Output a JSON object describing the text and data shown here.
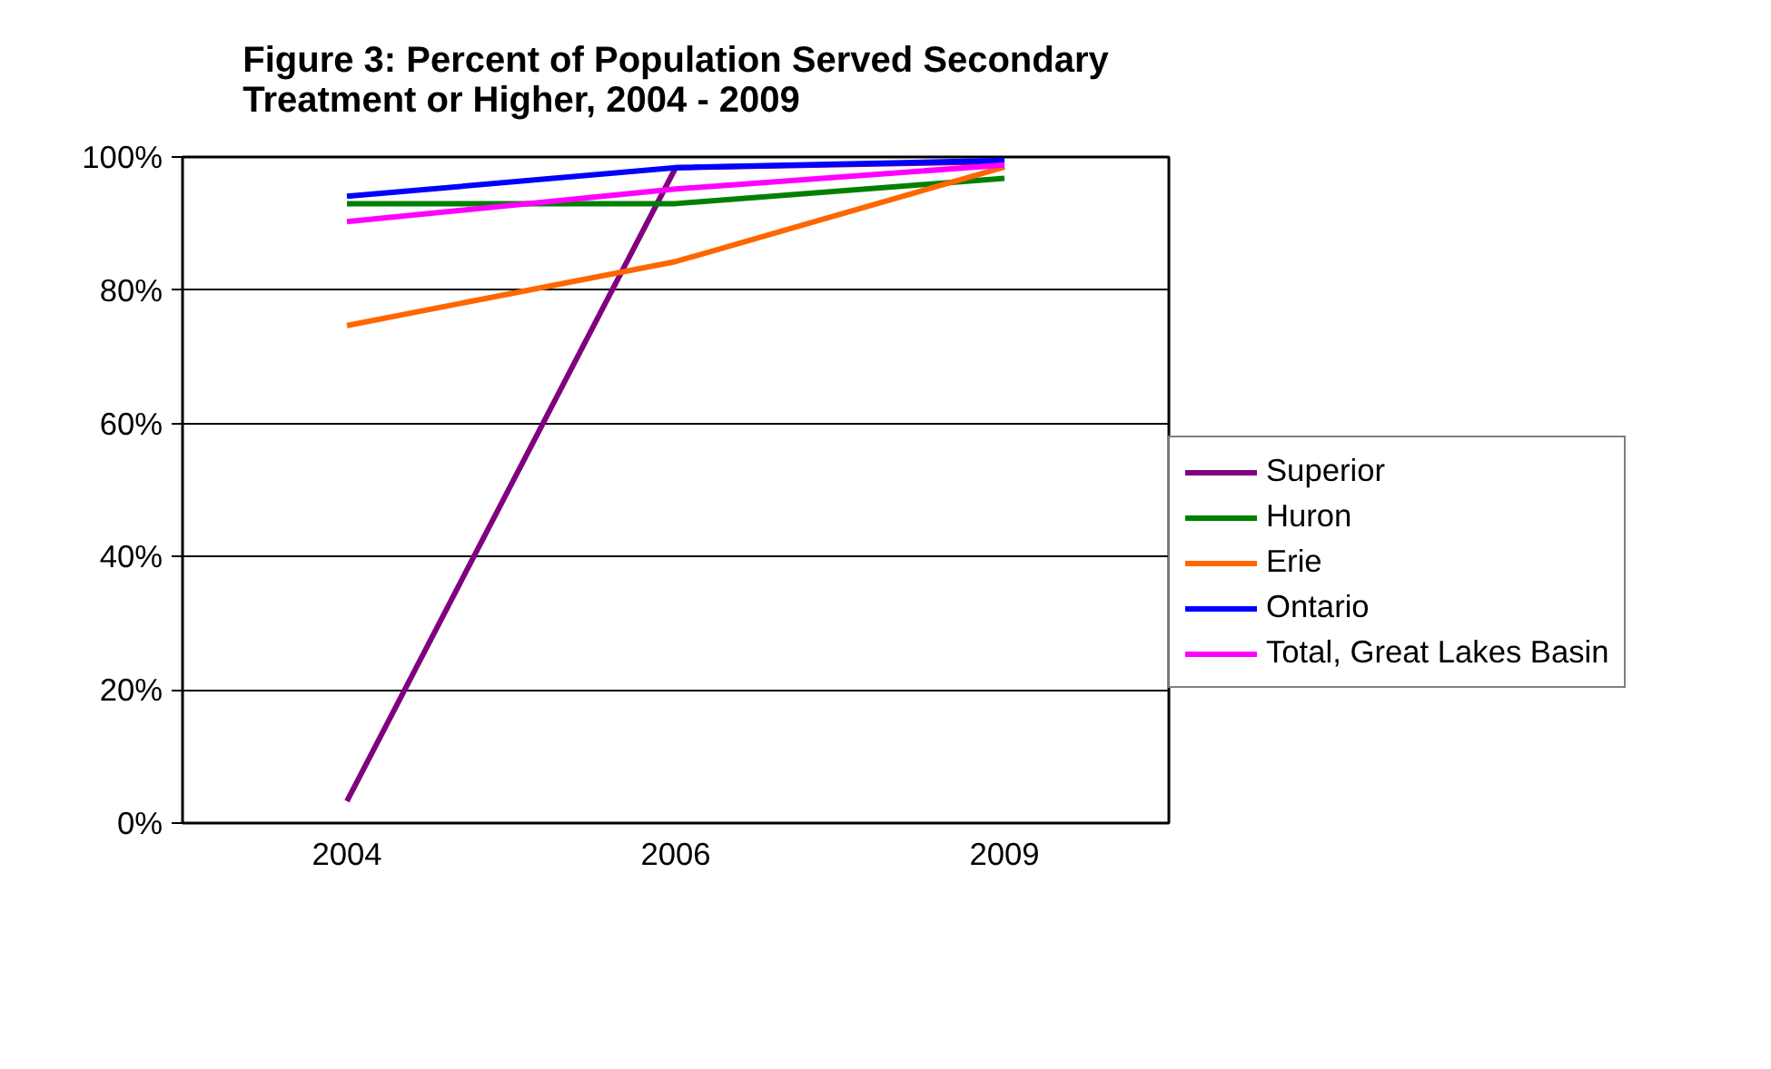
{
  "chart_data": {
    "type": "line",
    "title": "Figure 3: Percent of Population Served Secondary\nTreatment or Higher, 2004 - 2009",
    "categories": [
      "2004",
      "2006",
      "2009"
    ],
    "series": [
      {
        "name": "Superior",
        "color": "#800080",
        "values": [
          3.3,
          98.4,
          99.3
        ]
      },
      {
        "name": "Huron",
        "color": "#008000",
        "values": [
          93.0,
          93.0,
          96.8
        ]
      },
      {
        "name": "Erie",
        "color": "#ff6600",
        "values": [
          74.7,
          84.3,
          98.5
        ]
      },
      {
        "name": "Ontario",
        "color": "#0000ff",
        "values": [
          94.1,
          98.4,
          99.5
        ]
      },
      {
        "name": "Total, Great Lakes Basin",
        "color": "#ff00ff",
        "values": [
          90.3,
          95.2,
          98.8
        ]
      }
    ],
    "ylim": [
      0,
      100
    ],
    "yticks": [
      {
        "value": 0,
        "label": "0%"
      },
      {
        "value": 20,
        "label": "20%"
      },
      {
        "value": 40,
        "label": "40%"
      },
      {
        "value": 60,
        "label": "60%"
      },
      {
        "value": 80,
        "label": "80%"
      },
      {
        "value": 100,
        "label": "100%"
      }
    ],
    "grid": "y",
    "legend": "right",
    "marker": "none",
    "line_style": "solid"
  }
}
